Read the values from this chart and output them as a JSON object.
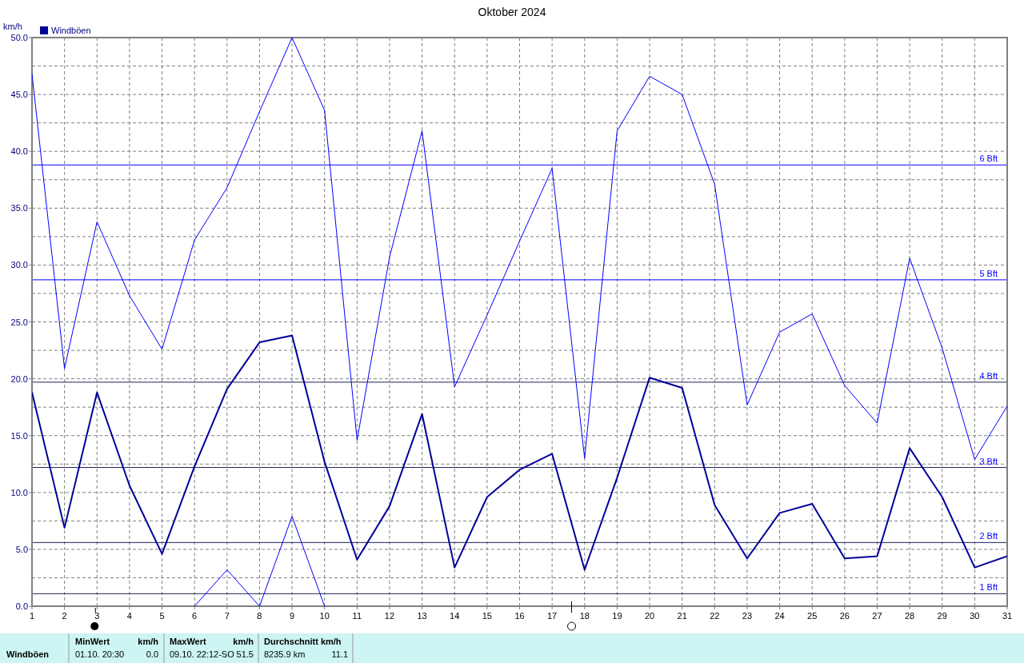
{
  "chart_data": {
    "type": "line",
    "title": "Oktober 2024",
    "ylabel": "km/h",
    "x": [
      1,
      2,
      3,
      4,
      5,
      6,
      7,
      8,
      9,
      10,
      11,
      12,
      13,
      14,
      15,
      16,
      17,
      18,
      19,
      20,
      21,
      22,
      23,
      24,
      25,
      26,
      27,
      28,
      29,
      30,
      31
    ],
    "xlim": [
      1,
      31
    ],
    "xticks": [
      1,
      2,
      3,
      4,
      5,
      6,
      7,
      8,
      9,
      10,
      11,
      12,
      13,
      14,
      15,
      16,
      17,
      18,
      19,
      20,
      21,
      22,
      23,
      24,
      25,
      26,
      27,
      28,
      29,
      30,
      31
    ],
    "ylim": [
      0,
      50
    ],
    "yticks": [
      {
        "value": 0,
        "label": "0.0"
      },
      {
        "value": 2.5,
        "label": null
      },
      {
        "value": 5,
        "label": "5.0"
      },
      {
        "value": 7.5,
        "label": null
      },
      {
        "value": 10,
        "label": "10.0"
      },
      {
        "value": 12.5,
        "label": null
      },
      {
        "value": 15,
        "label": "15.0"
      },
      {
        "value": 17.5,
        "label": null
      },
      {
        "value": 20,
        "label": "20.0"
      },
      {
        "value": 22.5,
        "label": null
      },
      {
        "value": 25,
        "label": "25.0"
      },
      {
        "value": 27.5,
        "label": null
      },
      {
        "value": 30,
        "label": "30.0"
      },
      {
        "value": 32.5,
        "label": null
      },
      {
        "value": 35,
        "label": "35.0"
      },
      {
        "value": 37.5,
        "label": null
      },
      {
        "value": 40,
        "label": "40.0"
      },
      {
        "value": 42.5,
        "label": null
      },
      {
        "value": 45,
        "label": "45.0"
      },
      {
        "value": 47.5,
        "label": null
      },
      {
        "value": 50,
        "label": "50.0"
      }
    ],
    "grid": true,
    "legend": "top left",
    "line_style": "solid",
    "marker": "none",
    "series": [
      {
        "color": "#0000ff",
        "values": [
          46.8,
          20.9,
          33.8,
          27.3,
          22.6,
          32.2,
          36.8,
          43.5,
          50,
          43.6,
          14.6,
          30.7,
          41.8,
          19.3,
          25.6,
          32.1,
          38.5,
          13.0,
          41.8,
          46.6,
          45.0,
          37.1,
          17.7,
          24.1,
          25.7,
          19.4,
          16.1,
          30.6,
          22.7,
          12.9,
          17.6
        ]
      },
      {
        "name": "Windböen",
        "color": "#000099",
        "values": [
          18.8,
          6.9,
          18.8,
          10.6,
          4.6,
          12.3,
          19.1,
          23.2,
          23.8,
          12.7,
          4.1,
          8.8,
          16.9,
          3.4,
          9.6,
          12.0,
          13.4,
          3.2,
          11.3,
          20.1,
          19.2,
          8.9,
          4.2,
          8.2,
          9.0,
          4.2,
          4.4,
          13.9,
          9.6,
          3.4,
          4.4
        ]
      },
      {
        "color": "#0000ff",
        "values": [
          null,
          null,
          null,
          null,
          null,
          0,
          3.2,
          0,
          7.9,
          0,
          null,
          null,
          null,
          null,
          null,
          null,
          null,
          null,
          null,
          null,
          null,
          null,
          null,
          null,
          null,
          null,
          null,
          null,
          null,
          null,
          null
        ]
      }
    ],
    "ref_lines": [
      {
        "axis": "y",
        "value": 38.8,
        "label": "6 Bft",
        "color": "#0000ff"
      },
      {
        "axis": "y",
        "value": 28.7,
        "label": "5 Bft",
        "color": "#0000ff"
      },
      {
        "axis": "y",
        "value": 19.7,
        "label": "4 Bft",
        "color": "#202060"
      },
      {
        "axis": "y",
        "value": 12.2,
        "label": "3 Bft",
        "color": "#202060"
      },
      {
        "axis": "y",
        "value": 5.6,
        "label": "2 Bft",
        "color": "#202060"
      },
      {
        "axis": "y",
        "value": 1.1,
        "label": "1 Bft",
        "color": "#202060"
      }
    ],
    "annotations": [
      "Windböen",
      "MinWert",
      "km/h",
      "01.10.  20:30",
      "0.0",
      "MaxWert",
      "km/h",
      "09.10.  22:12-SO",
      "51.5",
      "Durchschnitt km/h",
      "8235.9 km",
      "11.1"
    ]
  }
}
